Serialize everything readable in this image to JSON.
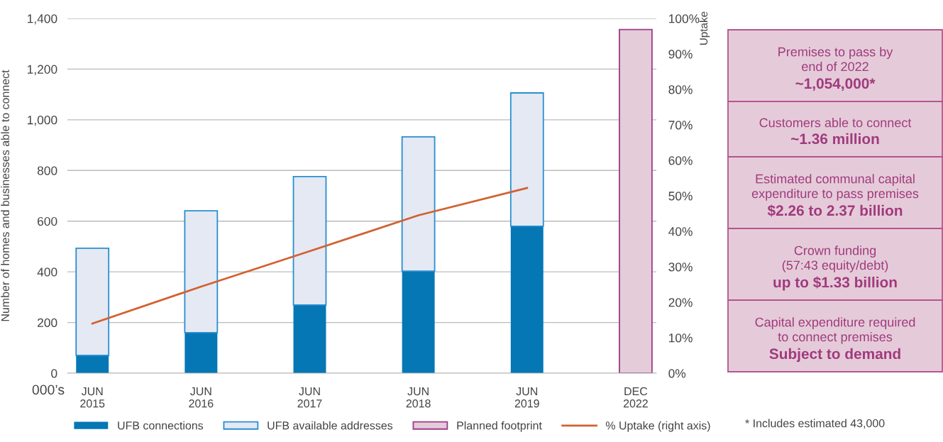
{
  "chart_data": [
    {
      "type": "bar",
      "stacked": true,
      "categories": [
        "JUN\n2015",
        "JUN\n2016",
        "JUN\n2017",
        "JUN\n2018",
        "JUN\n2019",
        "DEC\n2022"
      ],
      "ylabel": "Number of homes and businesses able to connect",
      "y2label": "Uptake",
      "series": [
        {
          "name": "UFB connections",
          "color": "#0577b5",
          "values": [
            70,
            160,
            269,
            403,
            580,
            null
          ]
        },
        {
          "name": "UFB available addresses",
          "color": "#e4e9f4",
          "values": [
            423,
            481,
            507,
            530,
            526,
            null
          ]
        },
        {
          "name": "Planned footprint",
          "color": "#e4ccd9",
          "values": [
            null,
            null,
            null,
            null,
            null,
            1356
          ]
        },
        {
          "name": "% Uptake (right axis)",
          "type": "line",
          "axis": "y2",
          "color": "#d3612f",
          "values": [
            14,
            24.4,
            34.4,
            44.5,
            52.2,
            null
          ]
        }
      ],
      "ylim": [
        0,
        1400
      ],
      "yticks": [
        0,
        200,
        400,
        600,
        800,
        {
          "value": 1000,
          "label": "1,000"
        },
        {
          "value": 1200,
          "label": "1,200"
        },
        {
          "value": 1400,
          "label": "1,400"
        }
      ],
      "y2lim": [
        0,
        100
      ],
      "y2ticks": [
        {
          "value": 0,
          "label": "0%"
        },
        {
          "value": 10,
          "label": "10%"
        },
        {
          "value": 20,
          "label": "20%"
        },
        {
          "value": 30,
          "label": "30%"
        },
        {
          "value": 40,
          "label": "40%"
        },
        {
          "value": 50,
          "label": "50%"
        },
        {
          "value": 60,
          "label": "60%"
        },
        {
          "value": 70,
          "label": "70%"
        },
        {
          "value": 80,
          "label": "80%"
        },
        {
          "value": 90,
          "label": "90%"
        },
        {
          "value": 100,
          "label": "100%"
        }
      ],
      "grid": "y",
      "legend": "bottom",
      "annotations": [
        "000’s",
        "* Includes estimated 43,000"
      ]
    },
    {
      "type": "other",
      "annotations": [
        "Premises to pass by\nend of 2022",
        "~1,054,000*",
        "Customers able to connect",
        "~1.36 million",
        "Estimated communal capital\nexpenditure to pass premises",
        "$2.26 to 2.37 billion",
        "Crown funding\n(57:43 equity/debt)",
        "up to $1.33 billion",
        "Capital expenditure required\nto connect premises",
        "Subject to demand"
      ]
    }
  ]
}
